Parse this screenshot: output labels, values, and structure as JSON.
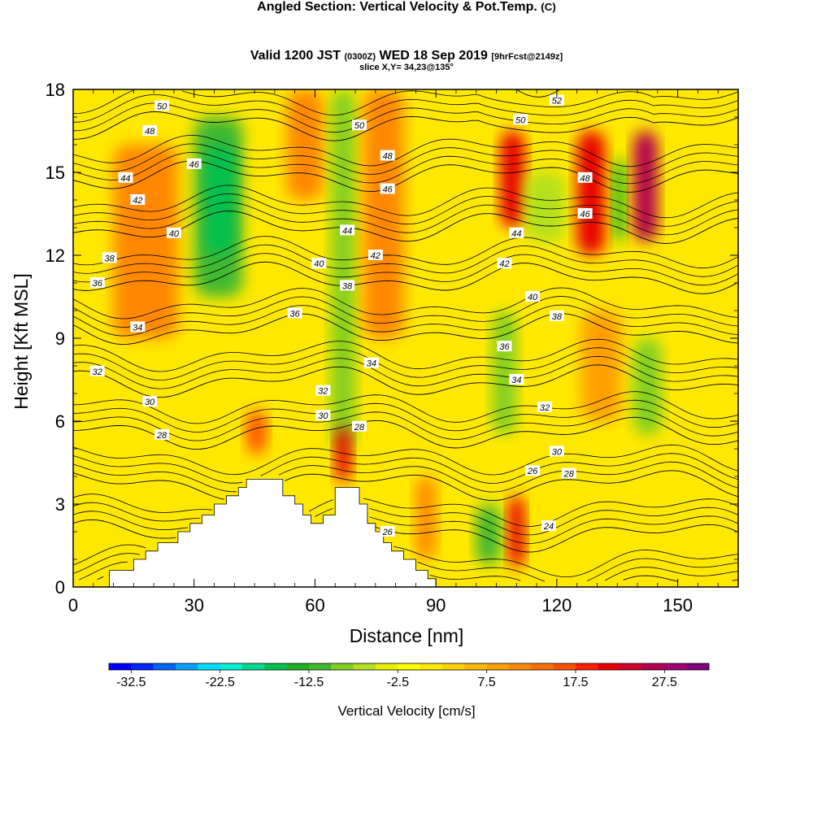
{
  "title": {
    "main": "Angled Section: Vertical Velocity & Pot.Temp.",
    "main_unit": "(C)",
    "valid_prefix": "Valid 1200 JST",
    "valid_utc": "(0300Z)",
    "valid_date": "WED 18 Sep 2019",
    "forecast": "[9hrFcst@2149z]",
    "slice": "slice X,Y= 34,23@135°"
  },
  "chart_data": {
    "type": "heatmap",
    "xlabel": "Distance [nm]",
    "ylabel": "Height [Kft MSL]",
    "xlim": [
      0,
      165
    ],
    "ylim": [
      0,
      18
    ],
    "x_ticks": [
      0,
      30,
      60,
      90,
      120,
      150
    ],
    "y_ticks": [
      0,
      3,
      6,
      9,
      12,
      15,
      18
    ],
    "colorbar": {
      "label": "Vertical Velocity [cm/s]",
      "range": [
        -35,
        32.5
      ],
      "step": 2.5,
      "tick_labels": [
        "-32.5",
        "-22.5",
        "-12.5",
        "-2.5",
        "7.5",
        "17.5",
        "27.5"
      ],
      "colors": [
        "#0000ff",
        "#0028ff",
        "#0064ff",
        "#00a0ff",
        "#00dcff",
        "#00f0d0",
        "#00d88c",
        "#00c050",
        "#20b020",
        "#40b830",
        "#80d020",
        "#b4e01c",
        "#e8f000",
        "#ffff00",
        "#ffe800",
        "#ffd000",
        "#ffb800",
        "#ffa000",
        "#ff8800",
        "#ff7000",
        "#ff5000",
        "#ff2000",
        "#e80000",
        "#d0002c",
        "#b40050",
        "#a00070",
        "#800080"
      ]
    },
    "terrain_kft": [
      [
        0,
        0
      ],
      [
        9,
        0
      ],
      [
        9,
        0.6
      ],
      [
        15,
        0.6
      ],
      [
        15,
        1
      ],
      [
        18,
        1
      ],
      [
        18,
        1.3
      ],
      [
        21,
        1.3
      ],
      [
        21,
        1.6
      ],
      [
        26,
        1.6
      ],
      [
        26,
        2
      ],
      [
        29,
        2
      ],
      [
        29,
        2.3
      ],
      [
        32,
        2.3
      ],
      [
        32,
        2.6
      ],
      [
        35,
        2.6
      ],
      [
        35,
        3
      ],
      [
        38,
        3
      ],
      [
        38,
        3.3
      ],
      [
        41,
        3.3
      ],
      [
        41,
        3.6
      ],
      [
        43,
        3.6
      ],
      [
        43,
        3.9
      ],
      [
        52,
        3.9
      ],
      [
        52,
        3.3
      ],
      [
        55,
        3.3
      ],
      [
        55,
        3
      ],
      [
        57,
        3
      ],
      [
        57,
        2.6
      ],
      [
        59,
        2.6
      ],
      [
        59,
        2.3
      ],
      [
        62,
        2.3
      ],
      [
        62,
        2.6
      ],
      [
        65,
        2.6
      ],
      [
        65,
        3.6
      ],
      [
        71,
        3.6
      ],
      [
        71,
        3
      ],
      [
        73,
        3
      ],
      [
        73,
        2.3
      ],
      [
        75,
        2.3
      ],
      [
        75,
        2
      ],
      [
        77,
        2
      ],
      [
        77,
        1.6
      ],
      [
        79,
        1.6
      ],
      [
        79,
        1.3
      ],
      [
        82,
        1.3
      ],
      [
        82,
        1
      ],
      [
        85,
        1
      ],
      [
        85,
        0.6
      ],
      [
        88,
        0.6
      ],
      [
        88,
        0.3
      ],
      [
        90,
        0.3
      ],
      [
        90,
        0
      ],
      [
        165,
        0
      ]
    ],
    "w_cells_cm_s": [
      {
        "x": [
          0,
          165
        ],
        "y": [
          0,
          18
        ],
        "w": 2
      },
      {
        "x": [
          10,
          26
        ],
        "y": [
          9,
          16
        ],
        "w": 10
      },
      {
        "x": [
          30,
          42
        ],
        "y": [
          10.5,
          17
        ],
        "w": -12
      },
      {
        "x": [
          33,
          40
        ],
        "y": [
          12,
          16
        ],
        "w": -17
      },
      {
        "x": [
          53,
          62
        ],
        "y": [
          14,
          18
        ],
        "w": 12
      },
      {
        "x": [
          64,
          70
        ],
        "y": [
          5,
          18
        ],
        "w": -8
      },
      {
        "x": [
          65,
          69
        ],
        "y": [
          3.8,
          5.8
        ],
        "w": 22
      },
      {
        "x": [
          43,
          48
        ],
        "y": [
          4.8,
          6.4
        ],
        "w": 17
      },
      {
        "x": [
          72,
          82
        ],
        "y": [
          9,
          18
        ],
        "w": 10
      },
      {
        "x": [
          100,
          106
        ],
        "y": [
          0.8,
          3
        ],
        "w": -12
      },
      {
        "x": [
          108,
          112
        ],
        "y": [
          0.7,
          3.3
        ],
        "w": 20
      },
      {
        "x": [
          85,
          90
        ],
        "y": [
          1,
          4
        ],
        "w": 10
      },
      {
        "x": [
          106,
          112
        ],
        "y": [
          13,
          16.5
        ],
        "w": 22
      },
      {
        "x": [
          112,
          122
        ],
        "y": [
          12.5,
          15
        ],
        "w": -7
      },
      {
        "x": [
          125,
          132
        ],
        "y": [
          12,
          16.5
        ],
        "w": 22
      },
      {
        "x": [
          134,
          137
        ],
        "y": [
          12.5,
          15.5
        ],
        "w": -15
      },
      {
        "x": [
          139,
          145
        ],
        "y": [
          12.5,
          16.5
        ],
        "w": 27
      },
      {
        "x": [
          126,
          136
        ],
        "y": [
          6,
          10
        ],
        "w": 8
      },
      {
        "x": [
          139,
          146
        ],
        "y": [
          5.5,
          9
        ],
        "w": -10
      },
      {
        "x": [
          104,
          110
        ],
        "y": [
          5.5,
          10
        ],
        "w": -8
      }
    ],
    "theta_levels_c": [
      24,
      26,
      28,
      30,
      32,
      34,
      36,
      38,
      40,
      42,
      44,
      46,
      48,
      50,
      52
    ],
    "contour_labels": [
      {
        "v": "50",
        "x": 22,
        "y": 17.4
      },
      {
        "v": "48",
        "x": 19,
        "y": 16.5
      },
      {
        "v": "46",
        "x": 30,
        "y": 15.3
      },
      {
        "v": "44",
        "x": 13,
        "y": 14.8
      },
      {
        "v": "42",
        "x": 16,
        "y": 14
      },
      {
        "v": "40",
        "x": 25,
        "y": 12.8
      },
      {
        "v": "38",
        "x": 9,
        "y": 11.9
      },
      {
        "v": "36",
        "x": 6,
        "y": 11
      },
      {
        "v": "34",
        "x": 16,
        "y": 9.4
      },
      {
        "v": "32",
        "x": 6,
        "y": 7.8
      },
      {
        "v": "30",
        "x": 19,
        "y": 6.7
      },
      {
        "v": "28",
        "x": 22,
        "y": 5.5
      },
      {
        "v": "50",
        "x": 71,
        "y": 16.7
      },
      {
        "v": "48",
        "x": 78,
        "y": 15.6
      },
      {
        "v": "46",
        "x": 78,
        "y": 14.4
      },
      {
        "v": "44",
        "x": 68,
        "y": 12.9
      },
      {
        "v": "42",
        "x": 75,
        "y": 12
      },
      {
        "v": "40",
        "x": 61,
        "y": 11.7
      },
      {
        "v": "38",
        "x": 68,
        "y": 10.9
      },
      {
        "v": "36",
        "x": 55,
        "y": 9.9
      },
      {
        "v": "34",
        "x": 74,
        "y": 8.1
      },
      {
        "v": "32",
        "x": 62,
        "y": 7.1
      },
      {
        "v": "30",
        "x": 62,
        "y": 6.2
      },
      {
        "v": "28",
        "x": 71,
        "y": 5.8
      },
      {
        "v": "26",
        "x": 78,
        "y": 2
      },
      {
        "v": "52",
        "x": 120,
        "y": 17.6
      },
      {
        "v": "50",
        "x": 111,
        "y": 16.9
      },
      {
        "v": "48",
        "x": 127,
        "y": 14.8
      },
      {
        "v": "46",
        "x": 127,
        "y": 13.5
      },
      {
        "v": "44",
        "x": 110,
        "y": 12.8
      },
      {
        "v": "42",
        "x": 107,
        "y": 11.7
      },
      {
        "v": "40",
        "x": 114,
        "y": 10.5
      },
      {
        "v": "38",
        "x": 120,
        "y": 9.8
      },
      {
        "v": "36",
        "x": 107,
        "y": 8.7
      },
      {
        "v": "34",
        "x": 110,
        "y": 7.5
      },
      {
        "v": "32",
        "x": 117,
        "y": 6.5
      },
      {
        "v": "30",
        "x": 120,
        "y": 4.9
      },
      {
        "v": "28",
        "x": 123,
        "y": 4.1
      },
      {
        "v": "26",
        "x": 114,
        "y": 4.2
      },
      {
        "v": "24",
        "x": 118,
        "y": 2.2
      }
    ]
  }
}
